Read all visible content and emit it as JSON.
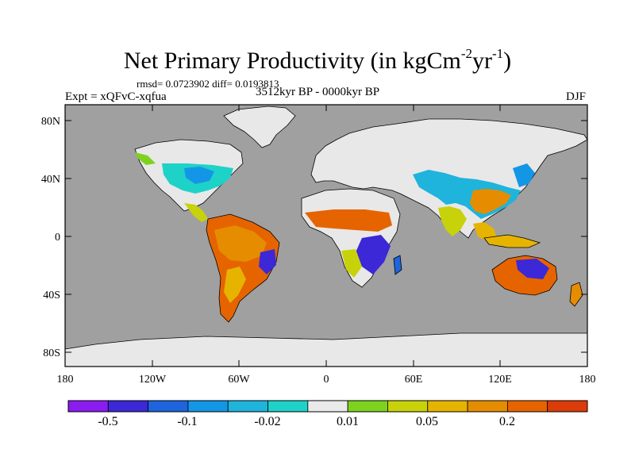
{
  "title": {
    "main": "Net Primary Productivity (in kgCm",
    "sup1": "-2",
    "mid": "yr",
    "sup2": "-1",
    "end": ")"
  },
  "stats": "rmsd= 0.0723902 diff= 0.0193813",
  "experiment": "Expt = xQFvC-xqfua",
  "period": "3512kyr BP - 0000kyr BP",
  "season": "DJF",
  "map": {
    "lat_ticks": [
      "80N",
      "40N",
      "0",
      "40S",
      "80S"
    ],
    "lon_ticks": [
      "180",
      "120W",
      "60W",
      "0",
      "60E",
      "120E",
      "180"
    ]
  },
  "colorbar": {
    "colors": [
      "#8a1cf0",
      "#3c28d6",
      "#1e64dc",
      "#1496e6",
      "#1eb4dc",
      "#1ed2c8",
      "#eaeaea",
      "#7dd21e",
      "#c8d20a",
      "#e6b400",
      "#e68c00",
      "#e66400",
      "#dc3c0a"
    ],
    "labels": [
      "-0.5",
      "-0.1",
      "-0.02",
      "0.01",
      "0.05",
      "0.2"
    ]
  },
  "colors": {
    "ocean": "#a0a0a0",
    "ice": "#e8e8e8",
    "coast": "#000000"
  }
}
